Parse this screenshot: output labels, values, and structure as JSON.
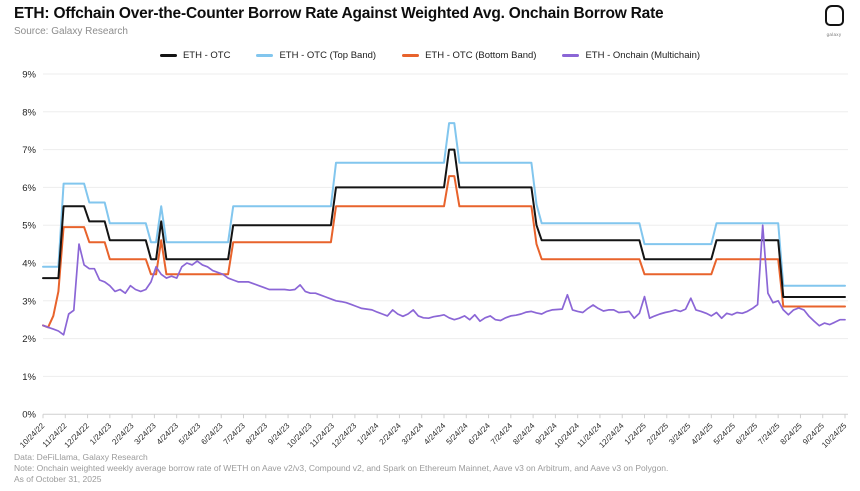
{
  "header": {
    "title": "ETH: Offchain Over-the-Counter Borrow Rate Against Weighted Avg. Onchain Borrow Rate",
    "source": "Source: Galaxy Research",
    "logo_text": "galaxy"
  },
  "footer": {
    "line1": "Data: DeFiLlama, Galaxy Research",
    "line2": "Note: Onchain weighted weekly average borrow rate of WETH on Aave v2/v3, Compound v2, and Spark on Ethereum Mainnet, Aave v3 on Arbitrum, and Aave v3 on Polygon.",
    "line3": "As of October 31, 2025"
  },
  "chart_data": {
    "type": "line",
    "title": "ETH: Offchain Over-the-Counter Borrow Rate Against Weighted Avg. Onchain Borrow Rate",
    "xlabel": "",
    "ylabel": "",
    "ylim": [
      0,
      9
    ],
    "grid": true,
    "legend_position": "top",
    "resolution": "weekly",
    "y_tick_labels": [
      "0%",
      "1%",
      "2%",
      "3%",
      "4%",
      "5%",
      "6%",
      "7%",
      "8%",
      "9%"
    ],
    "x_tick_labels": [
      "10/24/22",
      "11/24/22",
      "12/24/22",
      "1/24/23",
      "2/24/23",
      "3/24/23",
      "4/24/23",
      "5/24/23",
      "6/24/23",
      "7/24/23",
      "8/24/23",
      "9/24/23",
      "10/24/23",
      "11/24/23",
      "12/24/23",
      "1/24/24",
      "2/24/24",
      "3/24/24",
      "4/24/24",
      "5/24/24",
      "6/24/24",
      "7/24/24",
      "8/24/24",
      "9/24/24",
      "10/24/24",
      "11/24/24",
      "12/24/24",
      "1/24/25",
      "2/24/25",
      "3/24/25",
      "4/24/25",
      "5/24/25",
      "6/24/25",
      "7/24/25",
      "8/24/25",
      "9/24/25",
      "10/24/25"
    ],
    "series": [
      {
        "name": "ETH - OTC",
        "color": "#141414",
        "width": 2,
        "values": [
          3.6,
          3.6,
          3.6,
          3.6,
          5.5,
          5.5,
          5.5,
          5.5,
          5.5,
          5.1,
          5.1,
          5.1,
          5.1,
          4.6,
          4.6,
          4.6,
          4.6,
          4.6,
          4.6,
          4.6,
          4.6,
          4.1,
          4.1,
          5.1,
          4.1,
          4.1,
          4.1,
          4.1,
          4.1,
          4.1,
          4.1,
          4.1,
          4.1,
          4.1,
          4.1,
          4.1,
          4.1,
          5.0,
          5.0,
          5.0,
          5.0,
          5.0,
          5.0,
          5.0,
          5.0,
          5.0,
          5.0,
          5.0,
          5.0,
          5.0,
          5.0,
          5.0,
          5.0,
          5.0,
          5.0,
          5.0,
          5.0,
          6.0,
          6.0,
          6.0,
          6.0,
          6.0,
          6.0,
          6.0,
          6.0,
          6.0,
          6.0,
          6.0,
          6.0,
          6.0,
          6.0,
          6.0,
          6.0,
          6.0,
          6.0,
          6.0,
          6.0,
          6.0,
          6.0,
          7.0,
          7.0,
          6.0,
          6.0,
          6.0,
          6.0,
          6.0,
          6.0,
          6.0,
          6.0,
          6.0,
          6.0,
          6.0,
          6.0,
          6.0,
          6.0,
          6.0,
          5.0,
          4.6,
          4.6,
          4.6,
          4.6,
          4.6,
          4.6,
          4.6,
          4.6,
          4.6,
          4.6,
          4.6,
          4.6,
          4.6,
          4.6,
          4.6,
          4.6,
          4.6,
          4.6,
          4.6,
          4.6,
          4.1,
          4.1,
          4.1,
          4.1,
          4.1,
          4.1,
          4.1,
          4.1,
          4.1,
          4.1,
          4.1,
          4.1,
          4.1,
          4.1,
          4.6,
          4.6,
          4.6,
          4.6,
          4.6,
          4.6,
          4.6,
          4.6,
          4.6,
          4.6,
          4.6,
          4.6,
          4.6,
          3.1,
          3.1,
          3.1,
          3.1,
          3.1,
          3.1,
          3.1,
          3.1,
          3.1,
          3.1,
          3.1,
          3.1,
          3.1
        ]
      },
      {
        "name": "ETH - OTC (Top Band)",
        "color": "#82C6EE",
        "width": 2,
        "values": [
          3.9,
          3.9,
          3.9,
          3.9,
          6.1,
          6.1,
          6.1,
          6.1,
          6.1,
          5.6,
          5.6,
          5.6,
          5.6,
          5.05,
          5.05,
          5.05,
          5.05,
          5.05,
          5.05,
          5.05,
          5.05,
          4.55,
          4.55,
          5.5,
          4.55,
          4.55,
          4.55,
          4.55,
          4.55,
          4.55,
          4.55,
          4.55,
          4.55,
          4.55,
          4.55,
          4.55,
          4.55,
          5.5,
          5.5,
          5.5,
          5.5,
          5.5,
          5.5,
          5.5,
          5.5,
          5.5,
          5.5,
          5.5,
          5.5,
          5.5,
          5.5,
          5.5,
          5.5,
          5.5,
          5.5,
          5.5,
          5.5,
          6.65,
          6.65,
          6.65,
          6.65,
          6.65,
          6.65,
          6.65,
          6.65,
          6.65,
          6.65,
          6.65,
          6.65,
          6.65,
          6.65,
          6.65,
          6.65,
          6.65,
          6.65,
          6.65,
          6.65,
          6.65,
          6.65,
          7.7,
          7.7,
          6.65,
          6.65,
          6.65,
          6.65,
          6.65,
          6.65,
          6.65,
          6.65,
          6.65,
          6.65,
          6.65,
          6.65,
          6.65,
          6.65,
          6.65,
          5.55,
          5.05,
          5.05,
          5.05,
          5.05,
          5.05,
          5.05,
          5.05,
          5.05,
          5.05,
          5.05,
          5.05,
          5.05,
          5.05,
          5.05,
          5.05,
          5.05,
          5.05,
          5.05,
          5.05,
          5.05,
          4.5,
          4.5,
          4.5,
          4.5,
          4.5,
          4.5,
          4.5,
          4.5,
          4.5,
          4.5,
          4.5,
          4.5,
          4.5,
          4.5,
          5.05,
          5.05,
          5.05,
          5.05,
          5.05,
          5.05,
          5.05,
          5.05,
          5.05,
          5.05,
          5.05,
          5.05,
          5.05,
          3.4,
          3.4,
          3.4,
          3.4,
          3.4,
          3.4,
          3.4,
          3.4,
          3.4,
          3.4,
          3.4,
          3.4,
          3.4
        ]
      },
      {
        "name": "ETH - OTC (Bottom Band)",
        "color": "#E8632C",
        "width": 2,
        "values": [
          2.35,
          2.3,
          2.6,
          3.25,
          4.95,
          4.95,
          4.95,
          4.95,
          4.95,
          4.55,
          4.55,
          4.55,
          4.55,
          4.1,
          4.1,
          4.1,
          4.1,
          4.1,
          4.1,
          4.1,
          4.1,
          3.7,
          3.7,
          4.6,
          3.7,
          3.7,
          3.7,
          3.7,
          3.7,
          3.7,
          3.7,
          3.7,
          3.7,
          3.7,
          3.7,
          3.7,
          3.7,
          4.55,
          4.55,
          4.55,
          4.55,
          4.55,
          4.55,
          4.55,
          4.55,
          4.55,
          4.55,
          4.55,
          4.55,
          4.55,
          4.55,
          4.55,
          4.55,
          4.55,
          4.55,
          4.55,
          4.55,
          5.5,
          5.5,
          5.5,
          5.5,
          5.5,
          5.5,
          5.5,
          5.5,
          5.5,
          5.5,
          5.5,
          5.5,
          5.5,
          5.5,
          5.5,
          5.5,
          5.5,
          5.5,
          5.5,
          5.5,
          5.5,
          5.5,
          6.3,
          6.3,
          5.5,
          5.5,
          5.5,
          5.5,
          5.5,
          5.5,
          5.5,
          5.5,
          5.5,
          5.5,
          5.5,
          5.5,
          5.5,
          5.5,
          5.5,
          4.5,
          4.1,
          4.1,
          4.1,
          4.1,
          4.1,
          4.1,
          4.1,
          4.1,
          4.1,
          4.1,
          4.1,
          4.1,
          4.1,
          4.1,
          4.1,
          4.1,
          4.1,
          4.1,
          4.1,
          4.1,
          3.7,
          3.7,
          3.7,
          3.7,
          3.7,
          3.7,
          3.7,
          3.7,
          3.7,
          3.7,
          3.7,
          3.7,
          3.7,
          3.7,
          4.1,
          4.1,
          4.1,
          4.1,
          4.1,
          4.1,
          4.1,
          4.1,
          4.1,
          4.1,
          4.1,
          4.1,
          4.1,
          2.85,
          2.85,
          2.85,
          2.85,
          2.85,
          2.85,
          2.85,
          2.85,
          2.85,
          2.85,
          2.85,
          2.85,
          2.85
        ]
      },
      {
        "name": "ETH - Onchain (Multichain)",
        "color": "#8B66D6",
        "width": 1.7,
        "values": [
          2.35,
          2.3,
          2.25,
          2.2,
          2.1,
          2.65,
          2.75,
          4.5,
          3.95,
          3.85,
          3.85,
          3.55,
          3.5,
          3.4,
          3.25,
          3.3,
          3.2,
          3.4,
          3.3,
          3.25,
          3.3,
          3.5,
          3.9,
          3.7,
          3.6,
          3.65,
          3.6,
          3.9,
          4.0,
          3.95,
          4.05,
          3.95,
          3.9,
          3.8,
          3.75,
          3.7,
          3.6,
          3.55,
          3.5,
          3.5,
          3.5,
          3.45,
          3.4,
          3.35,
          3.3,
          3.3,
          3.3,
          3.3,
          3.28,
          3.3,
          3.42,
          3.25,
          3.2,
          3.2,
          3.15,
          3.1,
          3.05,
          3.0,
          2.98,
          2.95,
          2.9,
          2.85,
          2.8,
          2.78,
          2.76,
          2.7,
          2.65,
          2.6,
          2.76,
          2.65,
          2.59,
          2.65,
          2.76,
          2.6,
          2.55,
          2.54,
          2.58,
          2.6,
          2.63,
          2.55,
          2.5,
          2.54,
          2.6,
          2.5,
          2.63,
          2.46,
          2.55,
          2.6,
          2.5,
          2.48,
          2.55,
          2.6,
          2.62,
          2.65,
          2.7,
          2.72,
          2.68,
          2.65,
          2.72,
          2.76,
          2.77,
          2.78,
          3.16,
          2.76,
          2.72,
          2.69,
          2.8,
          2.89,
          2.8,
          2.73,
          2.76,
          2.76,
          2.69,
          2.7,
          2.72,
          2.54,
          2.67,
          3.11,
          2.54,
          2.6,
          2.65,
          2.69,
          2.72,
          2.76,
          2.72,
          2.78,
          3.07,
          2.76,
          2.72,
          2.67,
          2.6,
          2.69,
          2.54,
          2.67,
          2.63,
          2.69,
          2.67,
          2.72,
          2.8,
          2.9,
          5.0,
          3.2,
          2.95,
          3.0,
          2.76,
          2.63,
          2.76,
          2.81,
          2.76,
          2.59,
          2.46,
          2.34,
          2.41,
          2.37,
          2.43,
          2.5,
          2.5
        ]
      }
    ]
  }
}
